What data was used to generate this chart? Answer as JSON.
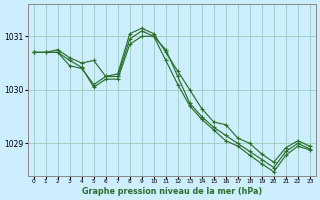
{
  "xlabel": "Graphe pression niveau de la mer (hPa)",
  "bg_color": "#cceeff",
  "grid_color": "#99ccbb",
  "line_color": "#2d6e2d",
  "marker": "+",
  "xlim_min": -0.5,
  "xlim_max": 23.5,
  "ylim": [
    1028.4,
    1031.6
  ],
  "yticks": [
    1029,
    1030,
    1031
  ],
  "xticks": [
    0,
    1,
    2,
    3,
    4,
    5,
    6,
    7,
    8,
    9,
    10,
    11,
    12,
    13,
    14,
    15,
    16,
    17,
    18,
    19,
    20,
    21,
    22,
    23
  ],
  "series": [
    [
      1030.7,
      1030.7,
      1030.75,
      1030.6,
      1030.5,
      1030.55,
      1030.25,
      1030.3,
      1031.05,
      1031.15,
      1031.05,
      1030.7,
      1030.35,
      1030.0,
      1029.65,
      1029.4,
      1029.35,
      1029.1,
      1029.0,
      1028.8,
      1028.65,
      1028.92,
      1029.05,
      1028.95
    ],
    [
      1030.7,
      1030.7,
      1030.7,
      1030.45,
      1030.4,
      1030.1,
      1030.25,
      1030.25,
      1030.95,
      1031.1,
      1031.0,
      1030.75,
      1030.25,
      1029.75,
      1029.5,
      1029.3,
      1029.15,
      1029.0,
      1028.85,
      1028.7,
      1028.55,
      1028.85,
      1029.0,
      1028.9
    ],
    [
      1030.7,
      1030.7,
      1030.7,
      1030.55,
      1030.42,
      1030.05,
      1030.2,
      1030.2,
      1030.85,
      1031.0,
      1031.0,
      1030.55,
      1030.1,
      1029.7,
      1029.45,
      1029.25,
      1029.05,
      1028.95,
      1028.78,
      1028.62,
      1028.47,
      1028.78,
      1028.95,
      1028.88
    ]
  ]
}
